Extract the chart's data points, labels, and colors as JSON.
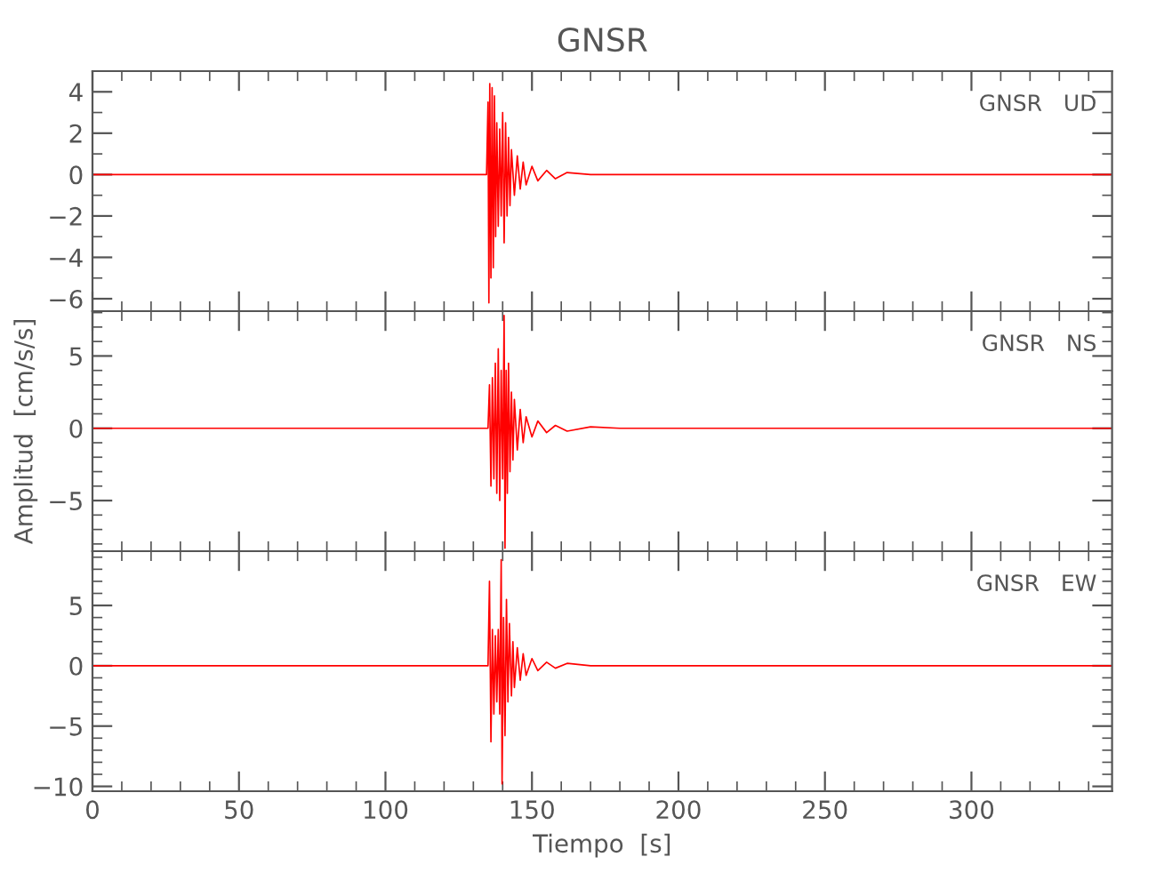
{
  "chart_data": [
    {
      "type": "line",
      "title": "GNSR",
      "annotations": [
        "GNSR   UD"
      ],
      "tick_labels": "y",
      "xlim": [
        0,
        348
      ],
      "ylim": [
        -6.6,
        5
      ],
      "yticks": [
        {
          "value": -6,
          "label": "−6"
        },
        {
          "value": -4,
          "label": "−4"
        },
        {
          "value": -2,
          "label": "−2"
        },
        0,
        2,
        4
      ],
      "series": [
        {
          "color": "#ff0000",
          "x": [
            0,
            20,
            40,
            60,
            80,
            100,
            120,
            130,
            134.5,
            135,
            135.3,
            135.6,
            136,
            136.4,
            136.8,
            137.2,
            137.6,
            138,
            138.5,
            139,
            139.5,
            140,
            140.5,
            141,
            141.5,
            142,
            142.5,
            143,
            144,
            145,
            146,
            147,
            148,
            150,
            152,
            155,
            158,
            162,
            170,
            200,
            250,
            300,
            348
          ],
          "values": [
            0,
            0,
            0,
            0,
            0,
            0,
            0,
            0,
            0,
            3.5,
            -6.2,
            4.4,
            -5,
            4.2,
            -4.5,
            3.8,
            -3,
            2.5,
            -2.5,
            2.2,
            -2,
            3,
            -3.3,
            2.5,
            -2,
            1.8,
            -1.5,
            1.2,
            -1,
            0.9,
            -0.7,
            0.6,
            -0.5,
            0.4,
            -0.3,
            0.2,
            -0.2,
            0.1,
            0,
            0,
            0,
            0,
            0
          ]
        }
      ]
    },
    {
      "type": "line",
      "ylabel": "Amplitud  [cm/s/s]",
      "annotations": [
        "GNSR   NS"
      ],
      "tick_labels": "y",
      "xlim": [
        0,
        348
      ],
      "ylim": [
        -8.5,
        8.1
      ],
      "yticks": [
        {
          "value": -5,
          "label": "−5"
        },
        0,
        5
      ],
      "series": [
        {
          "color": "#ff0000",
          "x": [
            0,
            20,
            40,
            60,
            80,
            100,
            120,
            130,
            135,
            135.5,
            136,
            136.5,
            137,
            137.5,
            138,
            138.5,
            139,
            139.5,
            140,
            140.5,
            140.8,
            141.2,
            141.6,
            142,
            142.5,
            143,
            143.5,
            144,
            145,
            146,
            147,
            148,
            150,
            152,
            155,
            158,
            162,
            170,
            180,
            200,
            250,
            300,
            348
          ],
          "values": [
            0,
            0,
            0,
            0,
            0,
            0,
            0,
            0,
            0,
            3,
            -4,
            3.5,
            -3.5,
            4.5,
            -4.5,
            5.5,
            -5,
            4,
            -3.5,
            7.8,
            -8.3,
            4,
            -4.5,
            4.5,
            -3,
            2.5,
            -2.2,
            2,
            -1.5,
            1.3,
            -1,
            0.8,
            -0.6,
            0.5,
            -0.3,
            0.2,
            -0.2,
            0.1,
            0,
            0,
            0,
            0,
            0
          ]
        }
      ]
    },
    {
      "type": "line",
      "xlabel": "Tiempo  [s]",
      "annotations": [
        "GNSR   EW"
      ],
      "xlim": [
        0,
        348
      ],
      "xticks": [
        0,
        50,
        100,
        150,
        200,
        250,
        300
      ],
      "ylim": [
        -10.4,
        9.5
      ],
      "yticks": [
        {
          "value": -10,
          "label": "−10"
        },
        {
          "value": -5,
          "label": "−5"
        },
        0,
        5
      ],
      "series": [
        {
          "color": "#ff0000",
          "x": [
            0,
            20,
            40,
            60,
            80,
            100,
            120,
            130,
            135,
            135.5,
            136,
            136.5,
            137,
            137.5,
            138,
            138.5,
            139,
            139.5,
            139.8,
            140.3,
            140.8,
            141.3,
            141.8,
            142.3,
            143,
            143.5,
            144,
            145,
            146,
            147,
            148,
            150,
            152,
            155,
            158,
            162,
            170,
            200,
            250,
            300,
            348
          ],
          "values": [
            0,
            0,
            0,
            0,
            0,
            0,
            0,
            0,
            0,
            7,
            -6.3,
            3,
            -4,
            2.5,
            -3,
            3,
            -4,
            8.8,
            -9.8,
            4,
            -5.8,
            5.5,
            -3,
            3.5,
            -2.5,
            2,
            -1.8,
            1.5,
            -1.2,
            1,
            -0.8,
            0.6,
            -0.4,
            0.3,
            -0.2,
            0.2,
            0,
            0,
            0,
            0,
            0
          ]
        }
      ]
    }
  ]
}
